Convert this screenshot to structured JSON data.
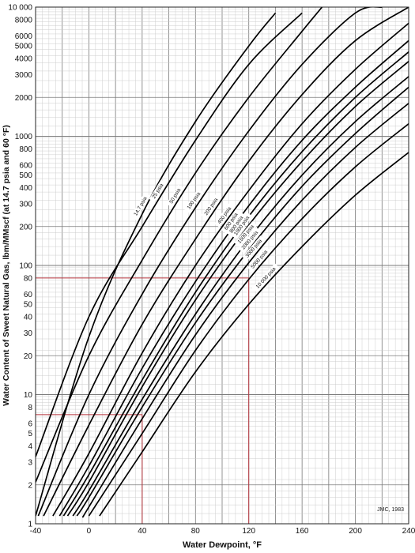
{
  "chart_data": {
    "type": "line",
    "title": "",
    "xlabel": "Water Dewpoint, °F",
    "ylabel": "Water Content of Sweet Natural Gas, lbm/MMscf (at 14.7 psia and 60 °F)",
    "xlim": [
      -40,
      240
    ],
    "ylim": [
      1,
      10000
    ],
    "y_scale": "log",
    "grid": true,
    "x_ticks": [
      -40,
      0,
      40,
      80,
      120,
      160,
      200,
      240
    ],
    "x_tick_labels": [
      "-40",
      "0",
      "40",
      "80",
      "120",
      "160",
      "200",
      "240"
    ],
    "y_ticks": [
      1,
      2,
      3,
      4,
      5,
      6,
      8,
      10,
      20,
      30,
      40,
      50,
      60,
      80,
      100,
      200,
      300,
      400,
      500,
      600,
      800,
      1000,
      2000,
      3000,
      4000,
      5000,
      6000,
      8000,
      10000
    ],
    "y_tick_labels": [
      "1",
      "2",
      "3",
      "4",
      "5",
      "6",
      "8",
      "10",
      "20",
      "30",
      "40",
      "50",
      "60",
      "80",
      "100",
      "200",
      "300",
      "400",
      "500",
      "600",
      "800",
      "1000",
      "2000",
      "3000",
      "4000",
      "5000",
      "6000",
      "8000",
      "10 000"
    ],
    "series": [
      {
        "name": "14.7 psia",
        "points": [
          [
            -40,
            1.15
          ],
          [
            0,
            28
          ],
          [
            40,
            250
          ],
          [
            80,
            1300
          ],
          [
            120,
            5000
          ],
          [
            140,
            9000
          ]
        ]
      },
      {
        "name": "25 psia",
        "points": [
          [
            -40,
            3.3
          ],
          [
            0,
            40
          ],
          [
            40,
            200
          ],
          [
            80,
            930
          ],
          [
            120,
            3600
          ],
          [
            160,
            9000
          ]
        ]
      },
      {
        "name": "50 psia",
        "points": [
          [
            -40,
            2.1
          ],
          [
            0,
            20
          ],
          [
            40,
            110
          ],
          [
            80,
            520
          ],
          [
            120,
            2000
          ],
          [
            160,
            6500
          ],
          [
            175,
            10000
          ]
        ]
      },
      {
        "name": "100 psia",
        "points": [
          [
            -38,
            1.15
          ],
          [
            0,
            10
          ],
          [
            40,
            60
          ],
          [
            80,
            280
          ],
          [
            120,
            1100
          ],
          [
            160,
            3600
          ],
          [
            200,
            9000
          ],
          [
            220,
            10000
          ]
        ]
      },
      {
        "name": "200 psia",
        "points": [
          [
            -34,
            1.15
          ],
          [
            0,
            5.8
          ],
          [
            40,
            35
          ],
          [
            80,
            160
          ],
          [
            120,
            640
          ],
          [
            160,
            2100
          ],
          [
            200,
            5500
          ],
          [
            240,
            10000
          ]
        ]
      },
      {
        "name": "400 psia",
        "points": [
          [
            -27,
            1.15
          ],
          [
            0,
            3.5
          ],
          [
            40,
            21
          ],
          [
            80,
            100
          ],
          [
            120,
            380
          ],
          [
            160,
            1250
          ],
          [
            200,
            3300
          ],
          [
            240,
            7500
          ]
        ]
      },
      {
        "name": "600 psia",
        "points": [
          [
            -22,
            1.15
          ],
          [
            0,
            2.8
          ],
          [
            40,
            16
          ],
          [
            80,
            75
          ],
          [
            120,
            290
          ],
          [
            160,
            930
          ],
          [
            200,
            2400
          ],
          [
            240,
            5500
          ]
        ]
      },
      {
        "name": "800 psia",
        "points": [
          [
            -19,
            1.15
          ],
          [
            0,
            2.4
          ],
          [
            40,
            13
          ],
          [
            80,
            62
          ],
          [
            120,
            240
          ],
          [
            160,
            760
          ],
          [
            200,
            2000
          ],
          [
            240,
            4500
          ]
        ]
      },
      {
        "name": "1000 psia",
        "points": [
          [
            -16,
            1.15
          ],
          [
            0,
            2.1
          ],
          [
            40,
            11.5
          ],
          [
            80,
            54
          ],
          [
            120,
            205
          ],
          [
            160,
            640
          ],
          [
            200,
            1700
          ],
          [
            240,
            3800
          ]
        ]
      },
      {
        "name": "1500 psia",
        "points": [
          [
            -12,
            1.15
          ],
          [
            0,
            1.8
          ],
          [
            40,
            9.2
          ],
          [
            80,
            42
          ],
          [
            120,
            160
          ],
          [
            160,
            500
          ],
          [
            200,
            1300
          ],
          [
            240,
            2900
          ]
        ]
      },
      {
        "name": "2000 psia",
        "points": [
          [
            -9,
            1.15
          ],
          [
            0,
            1.6
          ],
          [
            40,
            8.0
          ],
          [
            80,
            36
          ],
          [
            120,
            132
          ],
          [
            160,
            410
          ],
          [
            200,
            1050
          ],
          [
            240,
            2400
          ]
        ]
      },
      {
        "name": "3000 psia",
        "points": [
          [
            -4,
            1.15
          ],
          [
            0,
            1.35
          ],
          [
            40,
            6.5
          ],
          [
            80,
            29
          ],
          [
            120,
            105
          ],
          [
            160,
            320
          ],
          [
            200,
            820
          ],
          [
            240,
            1800
          ]
        ]
      },
      {
        "name": "5000 psia",
        "points": [
          [
            0,
            1.15
          ],
          [
            40,
            5.0
          ],
          [
            80,
            22
          ],
          [
            120,
            78
          ],
          [
            160,
            230
          ],
          [
            200,
            580
          ],
          [
            240,
            1250
          ]
        ]
      },
      {
        "name": "10 000 psia",
        "points": [
          [
            8,
            1.15
          ],
          [
            40,
            3.6
          ],
          [
            80,
            15
          ],
          [
            120,
            50
          ],
          [
            160,
            140
          ],
          [
            200,
            350
          ],
          [
            240,
            750
          ]
        ]
      }
    ],
    "reference_lines": [
      {
        "x": 120,
        "y": 80,
        "color": "#b5313a"
      },
      {
        "x": 40,
        "y": 7,
        "color": "#b5313a"
      }
    ],
    "annotation": "JMC, 1983"
  },
  "colors": {
    "curve": "#000000",
    "grid_major": "#7a7a7a",
    "grid_minor": "#c8c8c8",
    "reference": "#b5313a"
  }
}
